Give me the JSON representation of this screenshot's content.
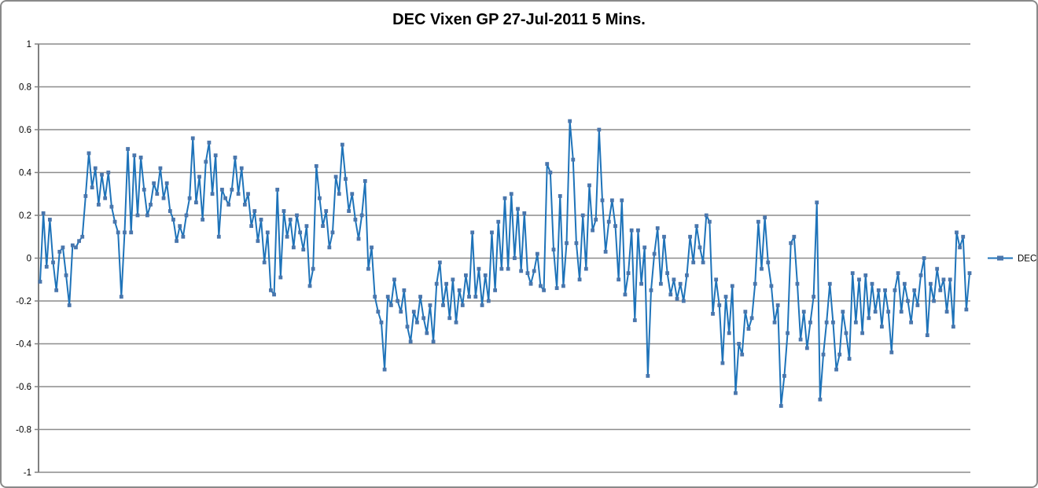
{
  "chart_title": "DEC Vixen GP 27-Jul-2011 5 Mins.",
  "legend": {
    "label": "DEC",
    "position": "right-middle"
  },
  "colors": {
    "line": "#1E73B9",
    "marker": "#4A76AC",
    "gridline": "#8C8C8C",
    "axis": "#808080",
    "border": "#898989",
    "title_text": "#000000",
    "tick_text": "#000000",
    "background": "#FFFFFF"
  },
  "chart_data": {
    "type": "line",
    "title": "DEC Vixen GP 27-Jul-2011 5 Mins.",
    "xlabel": "",
    "ylabel": "",
    "ylim": [
      -1,
      1
    ],
    "ytick_step": 0.2,
    "yticks": [
      "1",
      "0.8",
      "0.6",
      "0.4",
      "0.2",
      "0",
      "-0.2",
      "-0.4",
      "-0.6",
      "-0.8",
      "-1"
    ],
    "xticks": [],
    "grid": "horizontal",
    "legend_entries": [
      "DEC"
    ],
    "marker": "square",
    "sample_interval": "5 minutes",
    "series": [
      {
        "name": "DEC",
        "values": [
          -0.11,
          0.21,
          -0.04,
          0.18,
          -0.02,
          -0.15,
          0.03,
          0.05,
          -0.08,
          -0.22,
          0.06,
          0.05,
          0.08,
          0.1,
          0.29,
          0.49,
          0.33,
          0.42,
          0.25,
          0.39,
          0.28,
          0.4,
          0.24,
          0.17,
          0.12,
          -0.18,
          0.12,
          0.51,
          0.12,
          0.48,
          0.2,
          0.47,
          0.32,
          0.2,
          0.25,
          0.35,
          0.3,
          0.42,
          0.28,
          0.35,
          0.22,
          0.18,
          0.08,
          0.15,
          0.1,
          0.2,
          0.28,
          0.56,
          0.26,
          0.38,
          0.18,
          0.45,
          0.54,
          0.3,
          0.48,
          0.1,
          0.32,
          0.28,
          0.25,
          0.32,
          0.47,
          0.3,
          0.42,
          0.25,
          0.3,
          0.15,
          0.22,
          0.08,
          0.18,
          -0.02,
          0.12,
          -0.15,
          -0.17,
          0.32,
          -0.09,
          0.22,
          0.1,
          0.18,
          0.05,
          0.2,
          0.12,
          0.04,
          0.15,
          -0.13,
          -0.05,
          0.43,
          0.28,
          0.15,
          0.22,
          0.05,
          0.12,
          0.38,
          0.3,
          0.53,
          0.37,
          0.22,
          0.3,
          0.18,
          0.09,
          0.2,
          0.36,
          -0.05,
          0.05,
          -0.18,
          -0.25,
          -0.3,
          -0.52,
          -0.18,
          -0.22,
          -0.1,
          -0.2,
          -0.25,
          -0.15,
          -0.32,
          -0.39,
          -0.25,
          -0.3,
          -0.18,
          -0.28,
          -0.35,
          -0.22,
          -0.39,
          -0.12,
          -0.02,
          -0.22,
          -0.12,
          -0.28,
          -0.1,
          -0.3,
          -0.15,
          -0.22,
          -0.08,
          -0.18,
          0.12,
          -0.18,
          -0.05,
          -0.22,
          -0.08,
          -0.2,
          0.12,
          -0.15,
          0.17,
          -0.05,
          0.28,
          -0.05,
          0.3,
          0.0,
          0.23,
          -0.06,
          0.21,
          -0.07,
          -0.12,
          -0.06,
          0.02,
          -0.13,
          -0.15,
          0.44,
          0.4,
          0.04,
          -0.14,
          0.29,
          -0.13,
          0.07,
          0.64,
          0.46,
          0.07,
          -0.1,
          0.2,
          -0.05,
          0.34,
          0.13,
          0.18,
          0.6,
          0.27,
          0.03,
          0.17,
          0.27,
          0.15,
          -0.1,
          0.27,
          -0.17,
          -0.07,
          0.13,
          -0.29,
          0.13,
          -0.12,
          0.05,
          -0.55,
          -0.15,
          0.02,
          0.14,
          -0.12,
          0.1,
          -0.07,
          -0.17,
          -0.1,
          -0.19,
          -0.12,
          -0.2,
          -0.08,
          0.1,
          -0.02,
          0.15,
          0.05,
          -0.02,
          0.2,
          0.17,
          -0.26,
          -0.1,
          -0.22,
          -0.49,
          -0.18,
          -0.35,
          -0.13,
          -0.63,
          -0.4,
          -0.45,
          -0.25,
          -0.33,
          -0.28,
          -0.12,
          0.17,
          -0.05,
          0.19,
          -0.02,
          -0.13,
          -0.3,
          -0.22,
          -0.69,
          -0.55,
          -0.35,
          0.07,
          0.1,
          -0.12,
          -0.38,
          -0.25,
          -0.42,
          -0.3,
          -0.18,
          0.26,
          -0.66,
          -0.45,
          -0.3,
          -0.12,
          -0.3,
          -0.52,
          -0.45,
          -0.25,
          -0.35,
          -0.47,
          -0.07,
          -0.3,
          -0.1,
          -0.35,
          -0.08,
          -0.28,
          -0.12,
          -0.25,
          -0.15,
          -0.32,
          -0.15,
          -0.25,
          -0.44,
          -0.15,
          -0.07,
          -0.25,
          -0.12,
          -0.2,
          -0.3,
          -0.15,
          -0.22,
          -0.08,
          0.0,
          -0.36,
          -0.12,
          -0.2,
          -0.05,
          -0.15,
          -0.1,
          -0.25,
          -0.1,
          -0.32,
          0.12,
          0.05,
          0.1,
          -0.24,
          -0.07
        ]
      }
    ]
  }
}
